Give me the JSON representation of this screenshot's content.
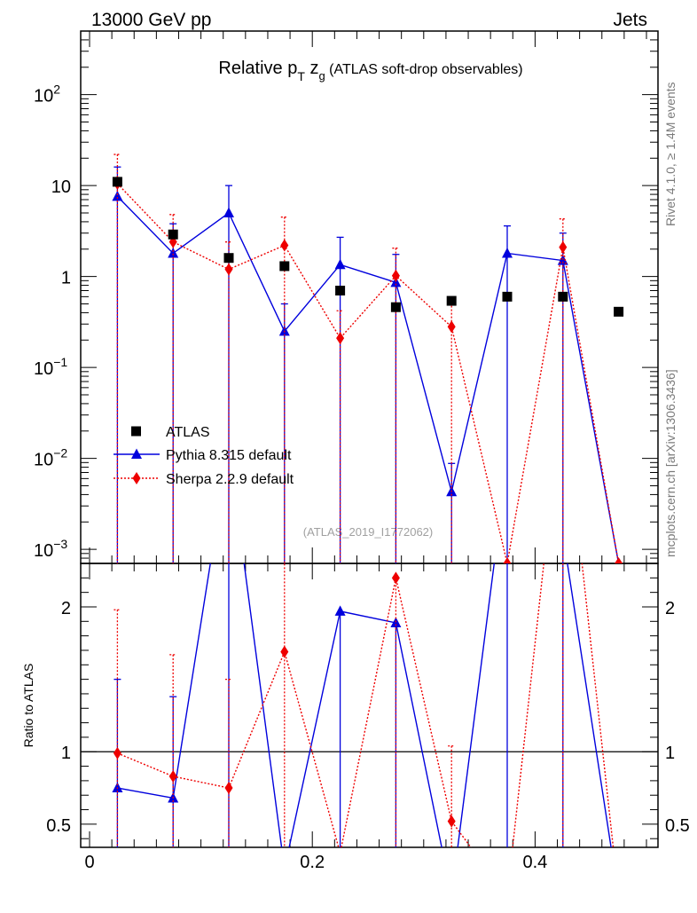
{
  "header": {
    "left": "13000 GeV pp",
    "right": "Jets"
  },
  "side_text": {
    "rivet": "Rivet 4.1.0, ≥ 1.4M events",
    "mcplots": "mcplots.cern.ch [arXiv:1306.3436]"
  },
  "chart_data": {
    "type": "scatter",
    "title": "Relative p_T z_g (ATLAS soft-drop observables)",
    "title_parts": {
      "main": "Relative p",
      "sub1": "T",
      "var": " z",
      "sub2": "g",
      "note": " (ATLAS soft-drop observables)"
    },
    "analysis_id": "(ATLAS_2019_I1772062)",
    "xlabel": "",
    "ylabel_ratio": "Ratio to ATLAS",
    "xlim": [
      0,
      0.5
    ],
    "ylim_main": [
      0.0007,
      500
    ],
    "ylim_ratio": [
      0.34,
      2.3
    ],
    "yscale_main": "log",
    "x_ticks": [
      "0",
      "0.2",
      "0.4"
    ],
    "y_ticks_main": [
      {
        "value": 100,
        "base": "10",
        "exp": "2"
      },
      {
        "value": 10,
        "base": "10",
        "exp": ""
      },
      {
        "value": 1,
        "base": "1",
        "exp": ""
      },
      {
        "value": 0.1,
        "base": "10",
        "exp": "−1"
      },
      {
        "value": 0.01,
        "base": "10",
        "exp": "−2"
      },
      {
        "value": 0.001,
        "base": "10",
        "exp": "−3"
      }
    ],
    "y_ticks_ratio": [
      {
        "value": 0.5,
        "label": "0.5"
      },
      {
        "value": 1,
        "label": "1"
      },
      {
        "value": 2,
        "label": "2"
      }
    ],
    "legend": {
      "position": "lower-left",
      "entries": [
        "ATLAS",
        "Pythia 8.315 default",
        "Sherpa 2.2.9 default"
      ]
    },
    "x": [
      0.025,
      0.075,
      0.125,
      0.175,
      0.225,
      0.275,
      0.325,
      0.375,
      0.425,
      0.475
    ],
    "series": [
      {
        "name": "ATLAS",
        "color": "#000000",
        "marker": "square",
        "values": [
          11,
          2.9,
          1.6,
          1.3,
          0.7,
          0.46,
          0.54,
          0.6,
          0.6,
          0.41
        ]
      },
      {
        "name": "Pythia 8.315 default",
        "color": "#0000dd",
        "marker": "triangle",
        "line": "solid",
        "values": [
          7.6,
          1.8,
          5.0,
          0.25,
          1.35,
          0.86,
          0.0043,
          1.8,
          1.5,
          0.0007
        ],
        "err_up": [
          16,
          3.8,
          10,
          0.5,
          2.7,
          1.75,
          0.0088,
          3.6,
          3.0,
          null
        ],
        "ratio": [
          0.75,
          0.68,
          3.1,
          0.19,
          1.97,
          1.89,
          0.008,
          3.0,
          2.5,
          0.0017
        ],
        "ratio_err_up": [
          1.5,
          1.38,
          null,
          null,
          null,
          null,
          null,
          null,
          null,
          null
        ]
      },
      {
        "name": "Sherpa 2.2.9 default",
        "color": "#ee0000",
        "marker": "diamond",
        "line": "dotted",
        "values": [
          10.5,
          2.4,
          1.2,
          2.2,
          0.21,
          1.02,
          0.28,
          0.0007,
          2.1,
          0.0007
        ],
        "err_up": [
          22,
          4.8,
          2.4,
          4.5,
          0.42,
          2.05,
          0.57,
          null,
          4.3,
          null
        ],
        "ratio": [
          0.99,
          0.83,
          0.75,
          1.69,
          0.3,
          2.2,
          0.52,
          0.0012,
          3.5,
          0.0017
        ],
        "ratio_err_up": [
          1.98,
          1.67,
          1.5,
          3.4,
          null,
          null,
          1.04,
          null,
          null,
          null
        ]
      }
    ]
  }
}
